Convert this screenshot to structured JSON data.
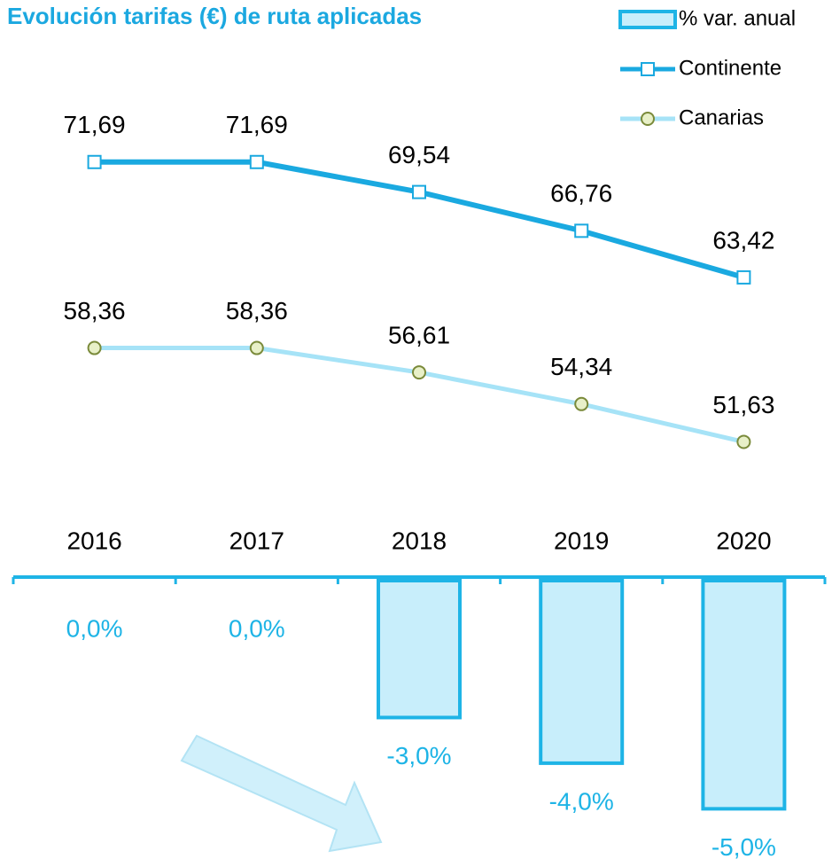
{
  "chart_data": {
    "type": "combo",
    "title": "Evolución tarifas (€) de ruta aplicadas",
    "categories": [
      "2016",
      "2017",
      "2018",
      "2019",
      "2020"
    ],
    "ylim": [
      -6.1,
      0
    ],
    "y2lim": [
      42,
      80
    ],
    "legend": "top-right",
    "series": [
      {
        "name": "% var. anual",
        "type": "bar",
        "color": "#c8eefb",
        "stroke": "#1eb4e6",
        "label_color": "#1eb4e6",
        "values": [
          0,
          0,
          -3,
          -4,
          -5
        ],
        "value_labels": [
          "0,0%",
          "0,0%",
          "-3,0%",
          "-4,0%",
          "-5,0%"
        ]
      },
      {
        "name": "Continente",
        "type": "line",
        "axis": "y2",
        "color": "#1aa9e0",
        "marker": "square",
        "marker_color": "#1aa9e0",
        "values": [
          71.69,
          71.69,
          69.54,
          66.76,
          63.42
        ],
        "value_labels": [
          "71,69",
          "71,69",
          "69,54",
          "66,76",
          "63,42"
        ]
      },
      {
        "name": "Canarias",
        "type": "line",
        "axis": "y2",
        "color": "#a6e3f7",
        "marker": "circle",
        "marker_color": "#7a8a3a",
        "values": [
          58.36,
          58.36,
          56.61,
          54.34,
          51.63
        ],
        "value_labels": [
          "58,36",
          "58,36",
          "56,61",
          "54,34",
          "51,63"
        ]
      }
    ]
  }
}
